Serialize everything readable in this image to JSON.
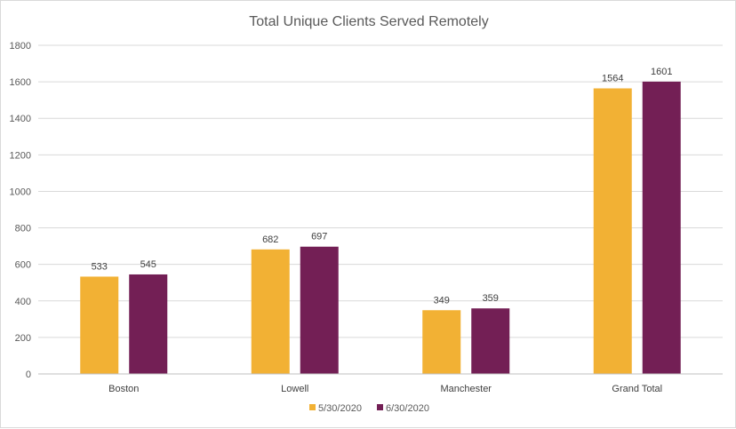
{
  "chart_data": {
    "type": "bar",
    "title": "Total Unique Clients Served Remotely",
    "categories": [
      "Boston",
      "Lowell",
      "Manchester",
      "Grand Total"
    ],
    "series": [
      {
        "name": "5/30/2020",
        "values": [
          533,
          682,
          349,
          1564
        ],
        "color": "#F2B134"
      },
      {
        "name": "6/30/2020",
        "values": [
          545,
          697,
          359,
          1601
        ],
        "color": "#731F55"
      }
    ],
    "xlabel": "",
    "ylabel": "",
    "ylim": [
      0,
      1800
    ],
    "yticks": [
      0,
      200,
      400,
      600,
      800,
      1000,
      1200,
      1400,
      1600,
      1800
    ],
    "grid": true,
    "data_labels": true,
    "legend_position": "bottom"
  }
}
